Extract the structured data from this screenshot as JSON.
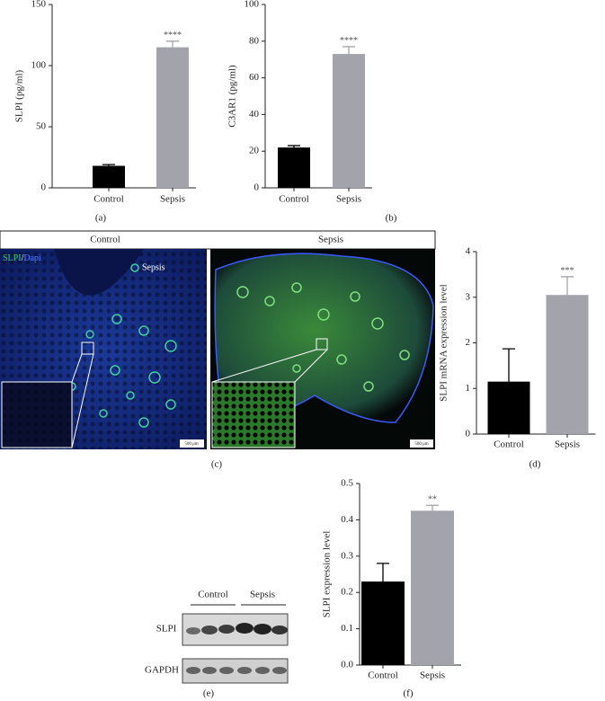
{
  "chart_data": [
    {
      "type": "bar",
      "panel_label": "(a)",
      "ylabel": "SLPI (pg/ml)",
      "categories": [
        "Control",
        "Sepsis"
      ],
      "values": [
        18,
        115
      ],
      "errors": [
        1,
        5
      ],
      "colors": [
        "#000000",
        "#a3a3ab"
      ],
      "significance": [
        null,
        "****"
      ],
      "ylim": [
        0,
        150
      ],
      "yticks": [
        0,
        50,
        100,
        150
      ]
    },
    {
      "type": "bar",
      "panel_label": "(b)",
      "ylabel": "C3AR1 (pg/ml)",
      "categories": [
        "Control",
        "Sepsis"
      ],
      "values": [
        22,
        73
      ],
      "errors": [
        1,
        4
      ],
      "colors": [
        "#000000",
        "#a3a3ab"
      ],
      "significance": [
        null,
        "****"
      ],
      "ylim": [
        0,
        100
      ],
      "yticks": [
        0,
        20,
        40,
        60,
        80,
        100
      ]
    },
    {
      "type": "bar",
      "panel_label": "(d)",
      "ylabel": "SLPI mRNA expression level",
      "categories": [
        "Control",
        "Sepsis"
      ],
      "values": [
        1.15,
        3.05
      ],
      "errors": [
        0.72,
        0.4
      ],
      "colors": [
        "#000000",
        "#a3a3ab"
      ],
      "significance": [
        null,
        "***"
      ],
      "ylim": [
        0,
        4
      ],
      "yticks": [
        0,
        1,
        2,
        3,
        4
      ]
    },
    {
      "type": "bar",
      "panel_label": "(f)",
      "ylabel": "SLPI expression level",
      "categories": [
        "Control",
        "Sepsis"
      ],
      "values": [
        0.23,
        0.425
      ],
      "errors": [
        0.05,
        0.015
      ],
      "colors": [
        "#000000",
        "#a3a3ab"
      ],
      "significance": [
        null,
        "**"
      ],
      "ylim": [
        0,
        0.5
      ],
      "yticks": [
        {
          "value": 0,
          "label": "0.0"
        },
        0.1,
        0.2,
        0.3,
        0.4,
        0.5
      ]
    }
  ],
  "figure_c": {
    "panel_label": "(c)",
    "column_headers": [
      "Control",
      "Sepsis"
    ],
    "legend": [
      "SLPI",
      "/",
      "Dapi"
    ],
    "inset_label": "Sepsis",
    "scale_bars": [
      "500 μm",
      "500 μm"
    ]
  },
  "figure_e": {
    "panel_label": "(e)",
    "groups": [
      "Control",
      "Sepsis"
    ],
    "rows": [
      "SLPI",
      "GAPDH"
    ]
  }
}
